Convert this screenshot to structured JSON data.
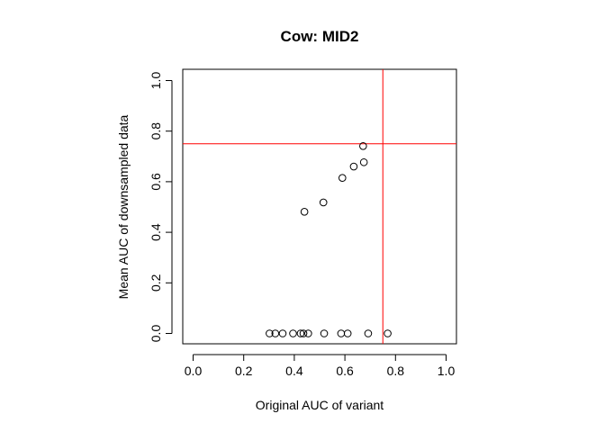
{
  "chart_data": {
    "type": "scatter",
    "title": "Cow: MID2",
    "xlabel": "Original AUC of variant",
    "ylabel": "Mean AUC of downsampled data",
    "xlim": [
      0.0,
      1.0
    ],
    "ylim": [
      0.0,
      1.0
    ],
    "xticks": [
      "0.0",
      "0.2",
      "0.4",
      "0.6",
      "0.8",
      "1.0"
    ],
    "yticks": [
      "0.0",
      "0.2",
      "0.4",
      "0.6",
      "0.8",
      "1.0"
    ],
    "grid": false,
    "legend": "none",
    "series": [
      {
        "marker": "open-circle",
        "color": "#000000",
        "points": [
          {
            "x": 0.302,
            "y": 0.0
          },
          {
            "x": 0.325,
            "y": 0.0
          },
          {
            "x": 0.354,
            "y": 0.0
          },
          {
            "x": 0.395,
            "y": 0.0
          },
          {
            "x": 0.425,
            "y": 0.0
          },
          {
            "x": 0.436,
            "y": 0.0
          },
          {
            "x": 0.455,
            "y": 0.0
          },
          {
            "x": 0.518,
            "y": 0.0
          },
          {
            "x": 0.585,
            "y": 0.0
          },
          {
            "x": 0.611,
            "y": 0.0
          },
          {
            "x": 0.692,
            "y": 0.0
          },
          {
            "x": 0.769,
            "y": 0.0
          },
          {
            "x": 0.44,
            "y": 0.481
          },
          {
            "x": 0.515,
            "y": 0.518
          },
          {
            "x": 0.59,
            "y": 0.615
          },
          {
            "x": 0.635,
            "y": 0.66
          },
          {
            "x": 0.675,
            "y": 0.677
          },
          {
            "x": 0.672,
            "y": 0.741
          }
        ]
      }
    ],
    "reference_lines": [
      {
        "orientation": "horizontal",
        "value": 0.75,
        "color": "#ff0000"
      },
      {
        "orientation": "vertical",
        "value": 0.75,
        "color": "#ff0000"
      }
    ]
  }
}
